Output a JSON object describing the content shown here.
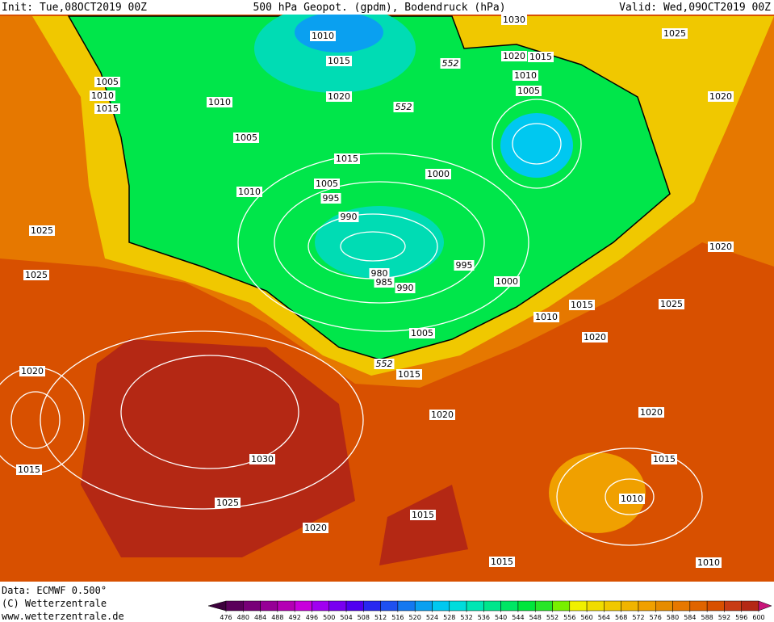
{
  "header": {
    "init": "Init: Tue,08OCT2019 00Z",
    "title": "500 hPa Geopot. (gpdm), Bodendruck (hPa)",
    "valid": "Valid: Wed,09OCT2019 00Z"
  },
  "map": {
    "isobar_labels": [
      "1010",
      "1015",
      "1005",
      "1010",
      "1015",
      "1010",
      "1020",
      "1005",
      "1015",
      "1010",
      "1005",
      "995",
      "990",
      "1000",
      "1020",
      "1015",
      "1010",
      "1005",
      "1025",
      "1020",
      "1025",
      "1025",
      "1020",
      "1015",
      "980",
      "985",
      "990",
      "995",
      "1000",
      "1005",
      "1015",
      "1010",
      "1015",
      "1020",
      "1025",
      "1020",
      "1020",
      "1020",
      "1030",
      "1025",
      "1020",
      "1015",
      "1010",
      "1015",
      "1015",
      "1010",
      "1030"
    ],
    "contour_labels": [
      "552",
      "552",
      "552"
    ]
  },
  "footer": {
    "data": "Data: ECMWF  0.500°",
    "copyright": "(C) Wetterzentrale",
    "url": "www.wetterzentrale.de"
  },
  "legend": {
    "ticks": [
      476,
      480,
      484,
      488,
      492,
      496,
      500,
      504,
      508,
      512,
      516,
      520,
      524,
      528,
      532,
      536,
      540,
      544,
      548,
      552,
      556,
      560,
      564,
      568,
      572,
      576,
      580,
      584,
      588,
      592,
      596,
      600
    ],
    "colors": [
      "#3c003c",
      "#5a005a",
      "#780078",
      "#960096",
      "#b400b4",
      "#c800dc",
      "#a000f0",
      "#7800f0",
      "#5000f0",
      "#2828f0",
      "#1e50f0",
      "#1478f0",
      "#0aa0f0",
      "#00c8f0",
      "#00dcdc",
      "#00e6b4",
      "#00e68c",
      "#00e664",
      "#00e63c",
      "#28e628",
      "#78f000",
      "#f0f000",
      "#f0dc00",
      "#f0c800",
      "#f0b400",
      "#f0a000",
      "#e68c00",
      "#e67800",
      "#e06400",
      "#d85000",
      "#c83c14",
      "#b42814",
      "#c8147a"
    ]
  }
}
